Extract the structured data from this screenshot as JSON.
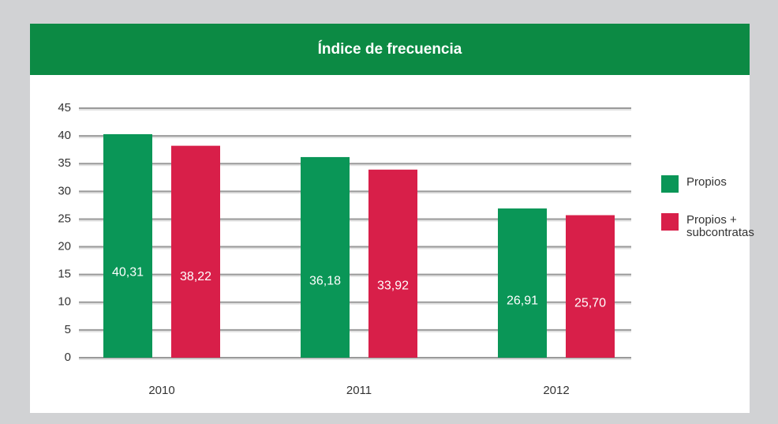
{
  "chart_data": {
    "type": "bar",
    "title": "Índice de frecuencia",
    "categories": [
      "2010",
      "2011",
      "2012"
    ],
    "series": [
      {
        "name": "Propios",
        "color": "#0a9657",
        "values": [
          40.31,
          36.18,
          26.91
        ],
        "value_labels": [
          "40,31",
          "36,18",
          "26,91"
        ]
      },
      {
        "name": "Propios + subcontratas",
        "color": "#d81f49",
        "values": [
          38.22,
          33.92,
          25.7
        ],
        "value_labels": [
          "38,22",
          "33,92",
          "25,70"
        ]
      }
    ],
    "ylim": [
      0,
      45
    ],
    "yticks": [
      0,
      5,
      10,
      15,
      20,
      25,
      30,
      35,
      40,
      45
    ],
    "grid": true,
    "legend": "right"
  }
}
